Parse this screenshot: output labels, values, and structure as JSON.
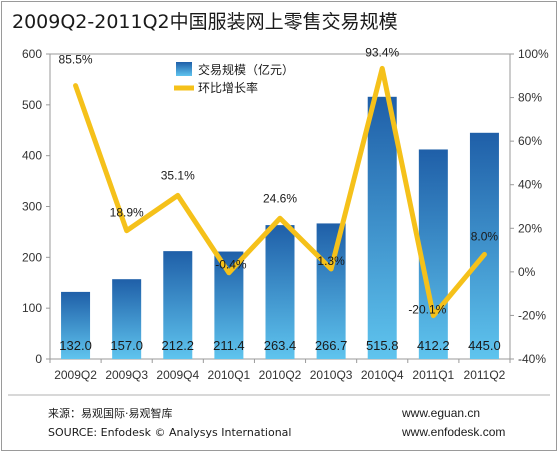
{
  "chart_data": {
    "type": "bar",
    "title": "2009Q2-2011Q2中国服装网上零售交易规模",
    "categories": [
      "2009Q2",
      "2009Q3",
      "2009Q4",
      "2010Q1",
      "2010Q2",
      "2010Q3",
      "2010Q4",
      "2011Q1",
      "2011Q2"
    ],
    "series": [
      {
        "name": "交易规模（亿元）",
        "type": "bar",
        "axis": "left",
        "values": [
          132.0,
          157.0,
          212.2,
          211.4,
          263.4,
          266.7,
          515.8,
          412.2,
          445.0
        ],
        "labels": [
          "132.0",
          "157.0",
          "212.2",
          "211.4",
          "263.4",
          "266.7",
          "515.8",
          "412.2",
          "445.0"
        ]
      },
      {
        "name": "环比增长率",
        "type": "line",
        "axis": "right",
        "values": [
          85.5,
          18.9,
          35.1,
          -0.4,
          24.6,
          1.3,
          93.4,
          -20.1,
          8.0
        ],
        "labels": [
          "85.5%",
          "18.9%",
          "35.1%",
          "-0.4%",
          "24.6%",
          "1.3%",
          "93.4%",
          "-20.1%",
          "8.0%"
        ]
      }
    ],
    "y_left": {
      "min": 0,
      "max": 600,
      "ticks": [
        "0",
        "100",
        "200",
        "300",
        "400",
        "500",
        "600"
      ]
    },
    "y_right": {
      "min": -40,
      "max": 100,
      "ticks": [
        "-40%",
        "-20%",
        "0%",
        "20%",
        "40%",
        "60%",
        "80%",
        "100%"
      ]
    },
    "legend_position": "top-center",
    "grid": false,
    "colors": {
      "bar_top": "#1f5fa8",
      "bar_bottom": "#5fc4ee",
      "line": "#f5c11a"
    }
  },
  "footer": {
    "source_cn": "来源：易观国际·易观智库",
    "source_en": "SOURCE: Enfodesk © Analysys International",
    "url1": "www.eguan.cn",
    "url2": "www.enfodesk.com"
  }
}
